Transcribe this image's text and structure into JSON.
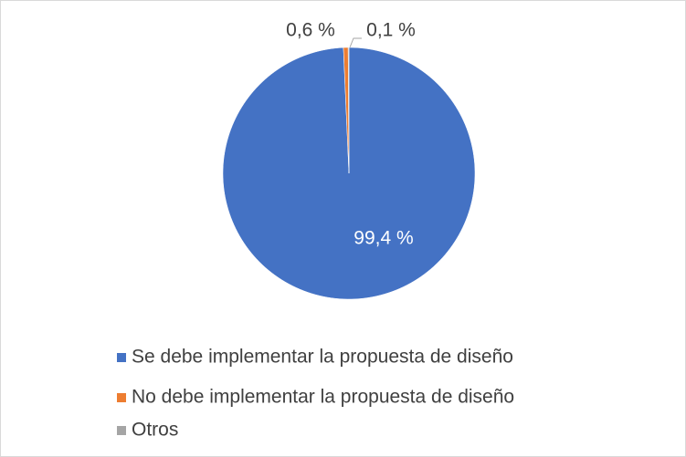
{
  "chart_data": {
    "type": "pie",
    "categories": [
      "Se debe implementar la propuesta de diseño",
      "No debe implementar la propuesta de diseño",
      "Otros"
    ],
    "values": [
      99.4,
      0.6,
      0.1
    ],
    "value_labels": [
      "99,4 %",
      "0,6 %",
      "0,1 %"
    ],
    "colors": [
      "#4472c4",
      "#ed7d31",
      "#a5a5a5"
    ],
    "legend": "bottom"
  }
}
